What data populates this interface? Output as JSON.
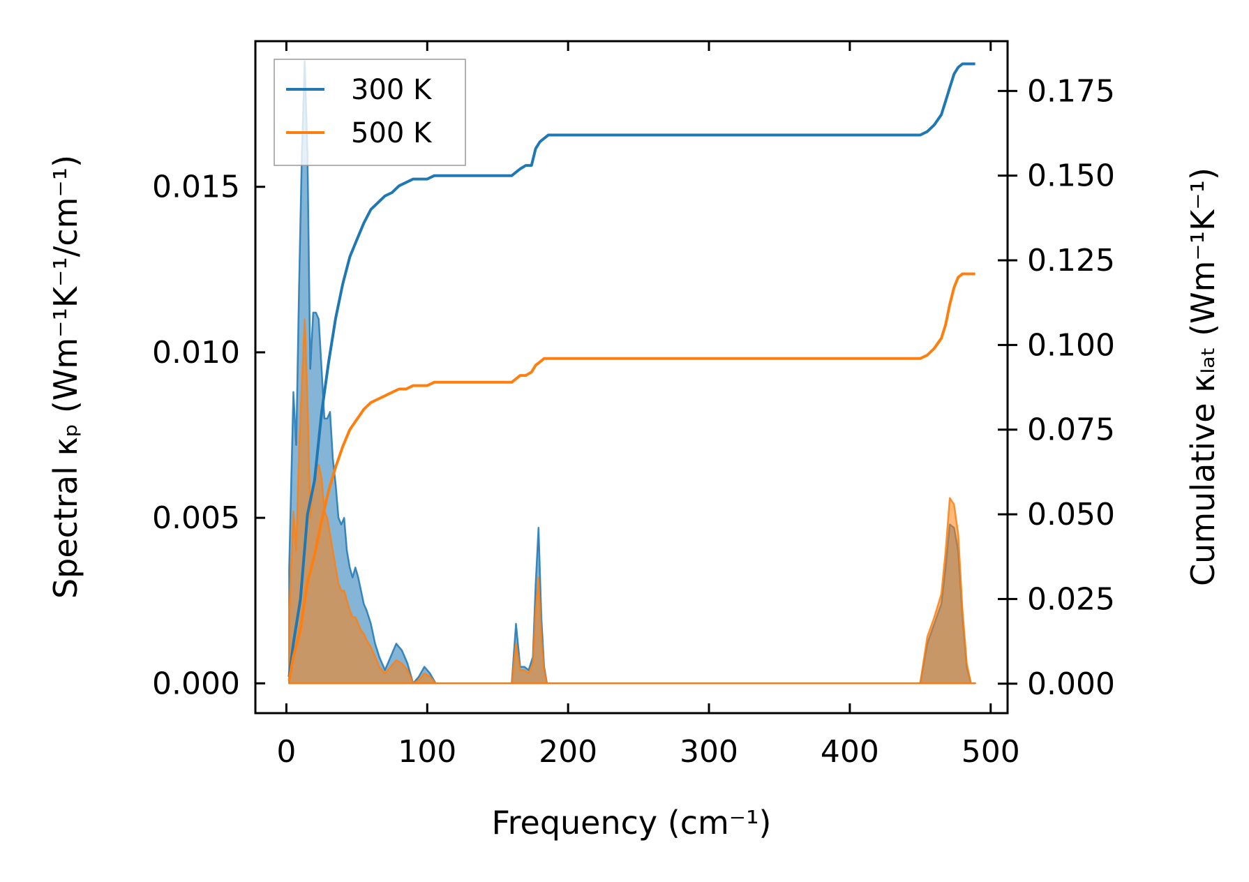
{
  "chart_data": {
    "type": "area",
    "xlabel": "Frequency (cm⁻¹)",
    "ylabel_left": "Spectral κₚ (Wm⁻¹K⁻¹/cm⁻¹)",
    "ylabel_right": "Cumulative κₗₐₜ (Wm⁻¹K⁻¹)",
    "xlim": [
      -22,
      512
    ],
    "ylim_left": [
      -0.0009,
      0.0194
    ],
    "ylim_right": [
      -0.0087,
      0.1897
    ],
    "x_ticks": [
      "0",
      "100",
      "200",
      "300",
      "400",
      "500"
    ],
    "y_left_ticks": [
      "0.000",
      "0.005",
      "0.010",
      "0.015"
    ],
    "y_right_ticks": [
      "0.000",
      "0.025",
      "0.050",
      "0.075",
      "0.100",
      "0.125",
      "0.150",
      "0.175"
    ],
    "legend_position": "upper-left",
    "colors": {
      "300 K": "#1f77b4",
      "500 K": "#ff7f0e"
    },
    "series": [
      {
        "name": "300 K",
        "spectral": {
          "x": [
            2,
            5,
            7,
            9,
            11,
            13,
            15,
            17,
            19,
            21,
            23,
            25,
            27,
            29,
            31,
            33,
            35,
            37,
            39,
            41,
            43,
            45,
            47,
            49,
            51,
            53,
            55,
            57,
            60,
            63,
            66,
            70,
            74,
            78,
            82,
            86,
            90,
            94,
            98,
            102,
            106,
            110,
            114,
            150,
            160,
            163,
            166,
            169,
            172,
            175,
            177,
            179,
            181,
            183,
            185,
            190,
            200,
            300,
            400,
            450,
            455,
            460,
            465,
            468,
            471,
            474,
            477,
            480,
            483,
            486,
            489
          ],
          "values": [
            0.0035,
            0.0088,
            0.0072,
            0.012,
            0.016,
            0.0188,
            0.016,
            0.0095,
            0.0112,
            0.0112,
            0.011,
            0.0095,
            0.008,
            0.008,
            0.0082,
            0.0068,
            0.006,
            0.005,
            0.0048,
            0.005,
            0.004,
            0.0035,
            0.0032,
            0.0035,
            0.0032,
            0.0028,
            0.0024,
            0.0022,
            0.0018,
            0.0012,
            0.0008,
            0.0004,
            0.0008,
            0.0012,
            0.001,
            0.0006,
            0.0,
            0.0002,
            0.0005,
            0.0003,
            0.0,
            0.0,
            0.0,
            0.0,
            0.0,
            0.0018,
            0.0005,
            0.0005,
            0.0004,
            0.0008,
            0.003,
            0.0047,
            0.002,
            0.0005,
            0.0,
            0.0,
            0.0,
            0.0,
            0.0,
            0.0,
            0.0012,
            0.0018,
            0.0024,
            0.0035,
            0.0048,
            0.0047,
            0.004,
            0.002,
            0.0005,
            0.0,
            0.0
          ]
        },
        "cumulative": {
          "x": [
            2,
            5,
            10,
            15,
            20,
            25,
            30,
            35,
            40,
            45,
            50,
            55,
            60,
            65,
            70,
            75,
            80,
            85,
            90,
            95,
            100,
            105,
            110,
            120,
            130,
            140,
            150,
            160,
            163,
            166,
            170,
            174,
            177,
            180,
            183,
            186,
            190,
            200,
            250,
            300,
            350,
            400,
            450,
            455,
            460,
            465,
            468,
            471,
            474,
            477,
            480,
            483,
            486,
            489
          ],
          "values": [
            0.002,
            0.012,
            0.025,
            0.05,
            0.06,
            0.08,
            0.095,
            0.108,
            0.118,
            0.126,
            0.131,
            0.136,
            0.14,
            0.142,
            0.144,
            0.145,
            0.147,
            0.148,
            0.149,
            0.149,
            0.149,
            0.15,
            0.15,
            0.15,
            0.15,
            0.15,
            0.15,
            0.15,
            0.151,
            0.152,
            0.153,
            0.153,
            0.158,
            0.16,
            0.161,
            0.162,
            0.162,
            0.162,
            0.162,
            0.162,
            0.162,
            0.162,
            0.162,
            0.163,
            0.165,
            0.168,
            0.172,
            0.176,
            0.18,
            0.182,
            0.183,
            0.183,
            0.183,
            0.183
          ]
        }
      },
      {
        "name": "500 K",
        "spectral": {
          "x": [
            2,
            5,
            7,
            9,
            11,
            13,
            15,
            17,
            19,
            21,
            23,
            25,
            27,
            29,
            31,
            33,
            35,
            37,
            39,
            41,
            43,
            45,
            47,
            49,
            51,
            53,
            55,
            57,
            60,
            63,
            66,
            70,
            74,
            78,
            82,
            86,
            90,
            94,
            98,
            102,
            106,
            110,
            114,
            150,
            160,
            163,
            166,
            169,
            172,
            175,
            177,
            179,
            181,
            183,
            185,
            190,
            200,
            300,
            400,
            450,
            455,
            460,
            465,
            468,
            471,
            474,
            477,
            480,
            483,
            486,
            489
          ],
          "values": [
            0.002,
            0.0052,
            0.004,
            0.007,
            0.009,
            0.011,
            0.0085,
            0.005,
            0.006,
            0.0066,
            0.0066,
            0.0062,
            0.0052,
            0.005,
            0.0045,
            0.004,
            0.0035,
            0.003,
            0.0028,
            0.0028,
            0.0025,
            0.0022,
            0.002,
            0.002,
            0.0018,
            0.0016,
            0.0015,
            0.0013,
            0.0011,
            0.0008,
            0.0005,
            0.0003,
            0.0005,
            0.0007,
            0.0006,
            0.0004,
            0.0,
            0.0001,
            0.0003,
            0.0002,
            0.0,
            0.0,
            0.0,
            0.0,
            0.0,
            0.0012,
            0.0004,
            0.0004,
            0.0003,
            0.0006,
            0.0022,
            0.0032,
            0.0014,
            0.0004,
            0.0,
            0.0,
            0.0,
            0.0,
            0.0,
            0.0,
            0.0014,
            0.002,
            0.0027,
            0.004,
            0.0056,
            0.0054,
            0.0045,
            0.0022,
            0.0006,
            0.0,
            0.0
          ]
        },
        "cumulative": {
          "x": [
            2,
            5,
            10,
            15,
            20,
            25,
            30,
            35,
            40,
            45,
            50,
            55,
            60,
            65,
            70,
            75,
            80,
            85,
            90,
            95,
            100,
            105,
            110,
            120,
            130,
            140,
            150,
            160,
            163,
            166,
            170,
            174,
            177,
            180,
            183,
            186,
            190,
            200,
            250,
            300,
            350,
            400,
            450,
            455,
            460,
            465,
            468,
            471,
            474,
            477,
            480,
            483,
            486,
            489
          ],
          "values": [
            0.001,
            0.008,
            0.016,
            0.03,
            0.038,
            0.048,
            0.057,
            0.064,
            0.07,
            0.075,
            0.078,
            0.081,
            0.083,
            0.084,
            0.085,
            0.086,
            0.087,
            0.087,
            0.088,
            0.088,
            0.088,
            0.089,
            0.089,
            0.089,
            0.089,
            0.089,
            0.089,
            0.089,
            0.09,
            0.091,
            0.091,
            0.092,
            0.094,
            0.095,
            0.096,
            0.096,
            0.096,
            0.096,
            0.096,
            0.096,
            0.096,
            0.096,
            0.096,
            0.097,
            0.099,
            0.102,
            0.106,
            0.112,
            0.117,
            0.12,
            0.121,
            0.121,
            0.121,
            0.121
          ]
        }
      }
    ]
  }
}
